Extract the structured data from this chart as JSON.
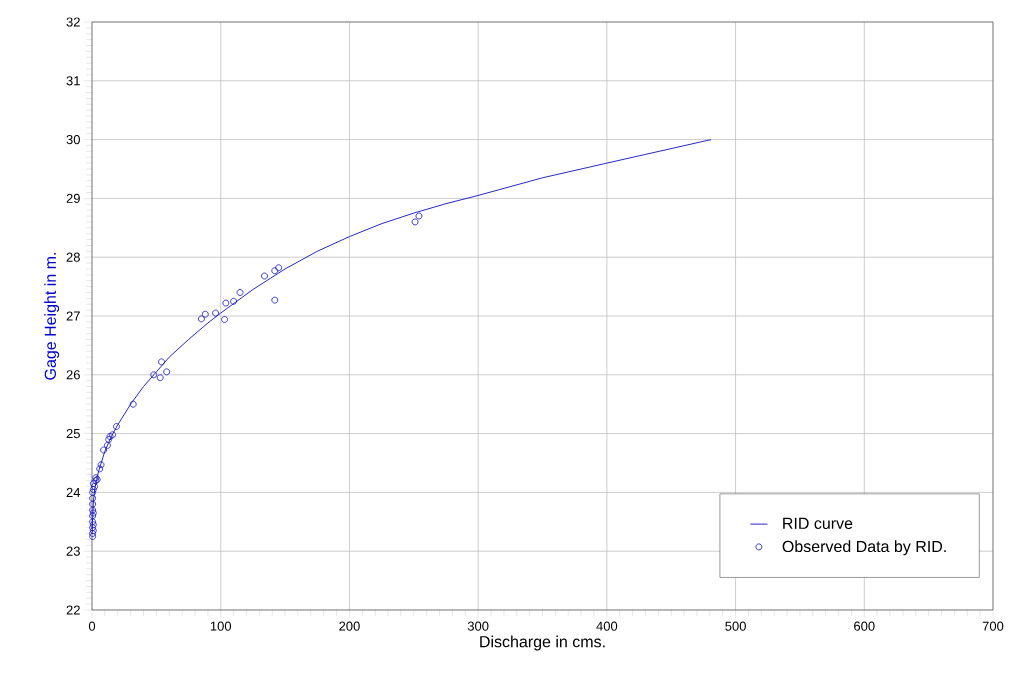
{
  "chart_data": {
    "type": "scatter",
    "xlabel": "Discharge in cms.",
    "ylabel": "Gage Height in m.",
    "xlim": [
      0,
      700
    ],
    "ylim": [
      22,
      32
    ],
    "xticks": [
      0,
      100,
      200,
      300,
      400,
      500,
      600,
      700
    ],
    "yticks": [
      22,
      23,
      24,
      25,
      26,
      27,
      28,
      29,
      30,
      31,
      32
    ],
    "grid": true,
    "legend": "bottom right",
    "series": [
      {
        "name": "RID curve",
        "type": "line",
        "color": "#1010c0",
        "marker": "none",
        "x": [
          0,
          1,
          2,
          5,
          10,
          15,
          20,
          30,
          40,
          50,
          60,
          75,
          90,
          100,
          125,
          150,
          175,
          200,
          225,
          250,
          275,
          300,
          350,
          400,
          481
        ],
        "values": [
          23.3,
          23.8,
          24.05,
          24.35,
          24.7,
          24.95,
          25.15,
          25.5,
          25.8,
          26.05,
          26.3,
          26.6,
          26.88,
          27.05,
          27.45,
          27.8,
          28.1,
          28.35,
          28.57,
          28.75,
          28.91,
          29.05,
          29.35,
          29.6,
          30.0
        ]
      },
      {
        "name": "Observed Data by RID.",
        "color": "#1010c0",
        "marker": "circle",
        "x": [
          251,
          254,
          134,
          142,
          145,
          142,
          115,
          110,
          104,
          103,
          96,
          88,
          85,
          58,
          54,
          53,
          48,
          32,
          19,
          16,
          14,
          13,
          12,
          9,
          7,
          6,
          4,
          3,
          2,
          3,
          1,
          0.5,
          0.5,
          0.5,
          0.5,
          0.5,
          0.5,
          0.5,
          0.5,
          0.5,
          1,
          1,
          1,
          1
        ],
        "values": [
          28.6,
          28.7,
          27.68,
          27.77,
          27.82,
          27.27,
          27.4,
          27.25,
          27.22,
          26.94,
          27.05,
          27.03,
          26.95,
          26.05,
          26.22,
          25.95,
          26.0,
          25.5,
          25.12,
          24.98,
          24.95,
          24.9,
          24.8,
          24.72,
          24.47,
          24.4,
          24.22,
          24.2,
          24.1,
          24.25,
          24.15,
          24.0,
          23.9,
          23.8,
          23.7,
          23.6,
          23.5,
          23.4,
          23.3,
          23.25,
          23.65,
          23.45,
          23.35,
          24.05
        ]
      }
    ]
  }
}
